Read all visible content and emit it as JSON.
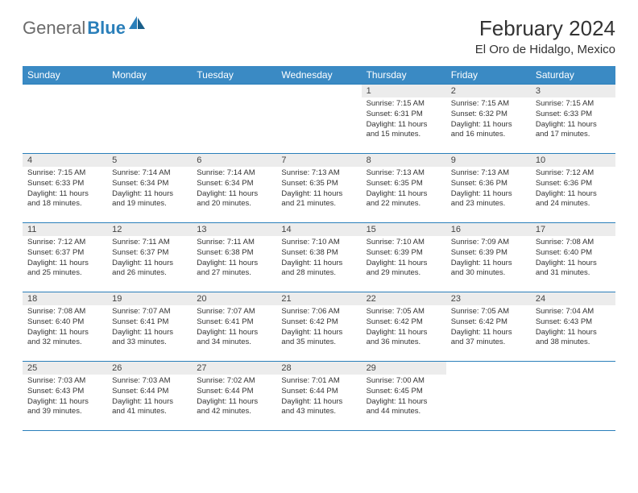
{
  "brand": {
    "part1": "General",
    "part2": "Blue"
  },
  "title": "February 2024",
  "location": "El Oro de Hidalgo, Mexico",
  "colors": {
    "header_bg": "#3a8ac4",
    "rule": "#2a7fba",
    "daynum_bg": "#ececec",
    "text": "#333333",
    "logo_gray": "#6b6b6b"
  },
  "days_of_week": [
    "Sunday",
    "Monday",
    "Tuesday",
    "Wednesday",
    "Thursday",
    "Friday",
    "Saturday"
  ],
  "weeks": [
    [
      {
        "n": "",
        "sr": "",
        "ss": "",
        "dl": ""
      },
      {
        "n": "",
        "sr": "",
        "ss": "",
        "dl": ""
      },
      {
        "n": "",
        "sr": "",
        "ss": "",
        "dl": ""
      },
      {
        "n": "",
        "sr": "",
        "ss": "",
        "dl": ""
      },
      {
        "n": "1",
        "sr": "Sunrise: 7:15 AM",
        "ss": "Sunset: 6:31 PM",
        "dl": "Daylight: 11 hours and 15 minutes."
      },
      {
        "n": "2",
        "sr": "Sunrise: 7:15 AM",
        "ss": "Sunset: 6:32 PM",
        "dl": "Daylight: 11 hours and 16 minutes."
      },
      {
        "n": "3",
        "sr": "Sunrise: 7:15 AM",
        "ss": "Sunset: 6:33 PM",
        "dl": "Daylight: 11 hours and 17 minutes."
      }
    ],
    [
      {
        "n": "4",
        "sr": "Sunrise: 7:15 AM",
        "ss": "Sunset: 6:33 PM",
        "dl": "Daylight: 11 hours and 18 minutes."
      },
      {
        "n": "5",
        "sr": "Sunrise: 7:14 AM",
        "ss": "Sunset: 6:34 PM",
        "dl": "Daylight: 11 hours and 19 minutes."
      },
      {
        "n": "6",
        "sr": "Sunrise: 7:14 AM",
        "ss": "Sunset: 6:34 PM",
        "dl": "Daylight: 11 hours and 20 minutes."
      },
      {
        "n": "7",
        "sr": "Sunrise: 7:13 AM",
        "ss": "Sunset: 6:35 PM",
        "dl": "Daylight: 11 hours and 21 minutes."
      },
      {
        "n": "8",
        "sr": "Sunrise: 7:13 AM",
        "ss": "Sunset: 6:35 PM",
        "dl": "Daylight: 11 hours and 22 minutes."
      },
      {
        "n": "9",
        "sr": "Sunrise: 7:13 AM",
        "ss": "Sunset: 6:36 PM",
        "dl": "Daylight: 11 hours and 23 minutes."
      },
      {
        "n": "10",
        "sr": "Sunrise: 7:12 AM",
        "ss": "Sunset: 6:36 PM",
        "dl": "Daylight: 11 hours and 24 minutes."
      }
    ],
    [
      {
        "n": "11",
        "sr": "Sunrise: 7:12 AM",
        "ss": "Sunset: 6:37 PM",
        "dl": "Daylight: 11 hours and 25 minutes."
      },
      {
        "n": "12",
        "sr": "Sunrise: 7:11 AM",
        "ss": "Sunset: 6:37 PM",
        "dl": "Daylight: 11 hours and 26 minutes."
      },
      {
        "n": "13",
        "sr": "Sunrise: 7:11 AM",
        "ss": "Sunset: 6:38 PM",
        "dl": "Daylight: 11 hours and 27 minutes."
      },
      {
        "n": "14",
        "sr": "Sunrise: 7:10 AM",
        "ss": "Sunset: 6:38 PM",
        "dl": "Daylight: 11 hours and 28 minutes."
      },
      {
        "n": "15",
        "sr": "Sunrise: 7:10 AM",
        "ss": "Sunset: 6:39 PM",
        "dl": "Daylight: 11 hours and 29 minutes."
      },
      {
        "n": "16",
        "sr": "Sunrise: 7:09 AM",
        "ss": "Sunset: 6:39 PM",
        "dl": "Daylight: 11 hours and 30 minutes."
      },
      {
        "n": "17",
        "sr": "Sunrise: 7:08 AM",
        "ss": "Sunset: 6:40 PM",
        "dl": "Daylight: 11 hours and 31 minutes."
      }
    ],
    [
      {
        "n": "18",
        "sr": "Sunrise: 7:08 AM",
        "ss": "Sunset: 6:40 PM",
        "dl": "Daylight: 11 hours and 32 minutes."
      },
      {
        "n": "19",
        "sr": "Sunrise: 7:07 AM",
        "ss": "Sunset: 6:41 PM",
        "dl": "Daylight: 11 hours and 33 minutes."
      },
      {
        "n": "20",
        "sr": "Sunrise: 7:07 AM",
        "ss": "Sunset: 6:41 PM",
        "dl": "Daylight: 11 hours and 34 minutes."
      },
      {
        "n": "21",
        "sr": "Sunrise: 7:06 AM",
        "ss": "Sunset: 6:42 PM",
        "dl": "Daylight: 11 hours and 35 minutes."
      },
      {
        "n": "22",
        "sr": "Sunrise: 7:05 AM",
        "ss": "Sunset: 6:42 PM",
        "dl": "Daylight: 11 hours and 36 minutes."
      },
      {
        "n": "23",
        "sr": "Sunrise: 7:05 AM",
        "ss": "Sunset: 6:42 PM",
        "dl": "Daylight: 11 hours and 37 minutes."
      },
      {
        "n": "24",
        "sr": "Sunrise: 7:04 AM",
        "ss": "Sunset: 6:43 PM",
        "dl": "Daylight: 11 hours and 38 minutes."
      }
    ],
    [
      {
        "n": "25",
        "sr": "Sunrise: 7:03 AM",
        "ss": "Sunset: 6:43 PM",
        "dl": "Daylight: 11 hours and 39 minutes."
      },
      {
        "n": "26",
        "sr": "Sunrise: 7:03 AM",
        "ss": "Sunset: 6:44 PM",
        "dl": "Daylight: 11 hours and 41 minutes."
      },
      {
        "n": "27",
        "sr": "Sunrise: 7:02 AM",
        "ss": "Sunset: 6:44 PM",
        "dl": "Daylight: 11 hours and 42 minutes."
      },
      {
        "n": "28",
        "sr": "Sunrise: 7:01 AM",
        "ss": "Sunset: 6:44 PM",
        "dl": "Daylight: 11 hours and 43 minutes."
      },
      {
        "n": "29",
        "sr": "Sunrise: 7:00 AM",
        "ss": "Sunset: 6:45 PM",
        "dl": "Daylight: 11 hours and 44 minutes."
      },
      {
        "n": "",
        "sr": "",
        "ss": "",
        "dl": ""
      },
      {
        "n": "",
        "sr": "",
        "ss": "",
        "dl": ""
      }
    ]
  ]
}
